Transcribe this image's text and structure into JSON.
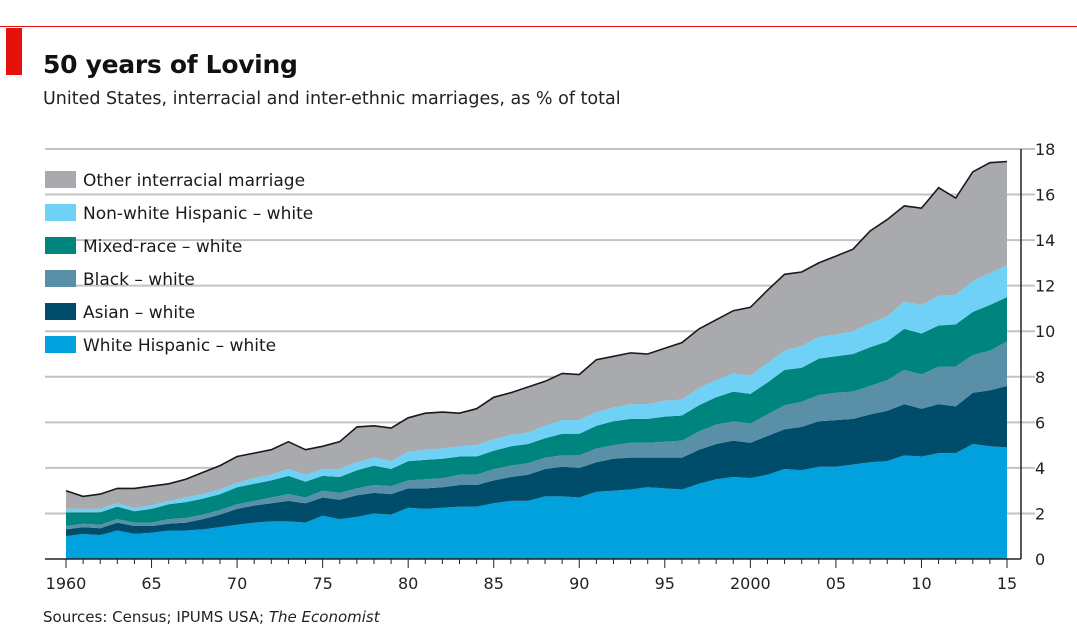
{
  "header": {
    "title": "50 years of Loving",
    "subtitle": "United States, interracial and inter-ethnic marriages, as % of total"
  },
  "footer": {
    "sources_prefix": "Sources: Census; IPUMS USA; ",
    "sources_em": "The Economist"
  },
  "chart_data": {
    "type": "area",
    "stacked": true,
    "title": "50 years of Loving",
    "subtitle": "United States, interracial and inter-ethnic marriages, as % of total",
    "xlim": [
      1960,
      2015
    ],
    "ylim": [
      0,
      18
    ],
    "y_ticks": [
      0,
      2,
      4,
      6,
      8,
      10,
      12,
      14,
      16,
      18
    ],
    "y_axis_side": "right",
    "x_ticks": [
      {
        "year": 1960,
        "label": "1960"
      },
      {
        "year": 1965,
        "label": "65"
      },
      {
        "year": 1970,
        "label": "70"
      },
      {
        "year": 1975,
        "label": "75"
      },
      {
        "year": 1980,
        "label": "80"
      },
      {
        "year": 1985,
        "label": "85"
      },
      {
        "year": 1990,
        "label": "90"
      },
      {
        "year": 1995,
        "label": "95"
      },
      {
        "year": 2000,
        "label": "2000"
      },
      {
        "year": 2005,
        "label": "05"
      },
      {
        "year": 2010,
        "label": "10"
      },
      {
        "year": 2015,
        "label": "15"
      }
    ],
    "grid": "horizontal",
    "legend_position": "top-left",
    "x": [
      1960,
      1961,
      1962,
      1963,
      1964,
      1965,
      1966,
      1967,
      1968,
      1969,
      1970,
      1971,
      1972,
      1973,
      1974,
      1975,
      1976,
      1977,
      1978,
      1979,
      1980,
      1981,
      1982,
      1983,
      1984,
      1985,
      1986,
      1987,
      1988,
      1989,
      1990,
      1991,
      1992,
      1993,
      1994,
      1995,
      1996,
      1997,
      1998,
      1999,
      2000,
      2001,
      2002,
      2003,
      2004,
      2005,
      2006,
      2007,
      2008,
      2009,
      2010,
      2011,
      2012,
      2013,
      2014,
      2015
    ],
    "series": [
      {
        "name": "White Hispanic – white",
        "color": "#00a1dc",
        "values": [
          1.0,
          1.1,
          1.05,
          1.25,
          1.1,
          1.15,
          1.25,
          1.25,
          1.3,
          1.4,
          1.5,
          1.6,
          1.65,
          1.65,
          1.6,
          1.9,
          1.75,
          1.85,
          2.0,
          1.95,
          2.25,
          2.2,
          2.25,
          2.3,
          2.3,
          2.45,
          2.55,
          2.55,
          2.75,
          2.75,
          2.7,
          2.95,
          3.0,
          3.05,
          3.15,
          3.1,
          3.05,
          3.3,
          3.5,
          3.6,
          3.55,
          3.7,
          3.95,
          3.9,
          4.05,
          4.05,
          4.15,
          4.25,
          4.3,
          4.55,
          4.5,
          4.65,
          4.65,
          5.05,
          4.95,
          4.9
        ]
      },
      {
        "name": "Asian – white",
        "color": "#004d6b",
        "values": [
          0.3,
          0.3,
          0.3,
          0.35,
          0.35,
          0.3,
          0.3,
          0.35,
          0.45,
          0.55,
          0.7,
          0.75,
          0.8,
          0.9,
          0.85,
          0.8,
          0.85,
          0.95,
          0.9,
          0.9,
          0.85,
          0.9,
          0.9,
          0.95,
          0.95,
          1.0,
          1.05,
          1.15,
          1.2,
          1.3,
          1.3,
          1.3,
          1.4,
          1.4,
          1.3,
          1.35,
          1.4,
          1.5,
          1.55,
          1.6,
          1.55,
          1.7,
          1.75,
          1.9,
          2.0,
          2.05,
          2.0,
          2.1,
          2.2,
          2.25,
          2.1,
          2.15,
          2.05,
          2.25,
          2.45,
          2.7
        ]
      },
      {
        "name": "Black – white",
        "color": "#5a8fa8",
        "values": [
          0.15,
          0.15,
          0.15,
          0.15,
          0.15,
          0.15,
          0.2,
          0.2,
          0.2,
          0.2,
          0.2,
          0.2,
          0.25,
          0.3,
          0.25,
          0.3,
          0.3,
          0.3,
          0.35,
          0.35,
          0.35,
          0.4,
          0.4,
          0.45,
          0.45,
          0.5,
          0.5,
          0.5,
          0.5,
          0.5,
          0.55,
          0.6,
          0.6,
          0.65,
          0.65,
          0.7,
          0.75,
          0.8,
          0.85,
          0.85,
          0.85,
          0.95,
          1.05,
          1.1,
          1.15,
          1.2,
          1.2,
          1.25,
          1.35,
          1.5,
          1.5,
          1.65,
          1.75,
          1.65,
          1.75,
          1.95
        ]
      },
      {
        "name": "Mixed-race – white",
        "color": "#00847e",
        "values": [
          0.6,
          0.5,
          0.55,
          0.55,
          0.5,
          0.6,
          0.65,
          0.7,
          0.7,
          0.7,
          0.75,
          0.75,
          0.75,
          0.8,
          0.7,
          0.65,
          0.7,
          0.8,
          0.85,
          0.75,
          0.85,
          0.85,
          0.85,
          0.8,
          0.8,
          0.8,
          0.85,
          0.85,
          0.85,
          0.95,
          0.95,
          1.0,
          1.05,
          1.05,
          1.05,
          1.1,
          1.1,
          1.15,
          1.2,
          1.3,
          1.3,
          1.4,
          1.55,
          1.5,
          1.6,
          1.6,
          1.65,
          1.7,
          1.7,
          1.8,
          1.8,
          1.8,
          1.85,
          1.9,
          2.0,
          1.95
        ]
      },
      {
        "name": "Non-white Hispanic – white",
        "color": "#6fd1f6",
        "values": [
          0.15,
          0.15,
          0.15,
          0.15,
          0.15,
          0.15,
          0.15,
          0.2,
          0.2,
          0.2,
          0.2,
          0.25,
          0.25,
          0.3,
          0.3,
          0.3,
          0.35,
          0.35,
          0.35,
          0.35,
          0.4,
          0.45,
          0.45,
          0.45,
          0.5,
          0.5,
          0.5,
          0.5,
          0.55,
          0.6,
          0.6,
          0.6,
          0.6,
          0.65,
          0.65,
          0.7,
          0.7,
          0.75,
          0.75,
          0.8,
          0.8,
          0.85,
          0.85,
          0.95,
          0.95,
          0.95,
          1.0,
          1.05,
          1.1,
          1.2,
          1.25,
          1.3,
          1.3,
          1.35,
          1.4,
          1.4
        ]
      },
      {
        "name": "Other interracial marriage",
        "color": "#a9aaad",
        "values": [
          0.8,
          0.55,
          0.65,
          0.65,
          0.85,
          0.85,
          0.75,
          0.8,
          0.95,
          1.05,
          1.15,
          1.1,
          1.1,
          1.2,
          1.1,
          1.0,
          1.2,
          1.55,
          1.4,
          1.45,
          1.5,
          1.6,
          1.6,
          1.45,
          1.6,
          1.85,
          1.85,
          2.0,
          1.95,
          2.05,
          2.0,
          2.3,
          2.25,
          2.25,
          2.2,
          2.3,
          2.5,
          2.6,
          2.65,
          2.75,
          3.0,
          3.2,
          3.35,
          3.25,
          3.25,
          3.45,
          3.6,
          4.05,
          4.25,
          4.2,
          4.25,
          4.75,
          4.25,
          4.8,
          4.85,
          4.55
        ]
      }
    ]
  }
}
